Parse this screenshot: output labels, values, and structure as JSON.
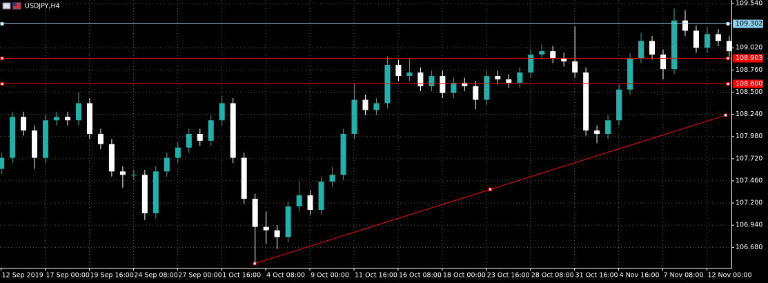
{
  "chart_data": {
    "type": "candlestick",
    "title": "USDJPY,H4",
    "bull_color": "#20b2aa",
    "bear_color": "#ffffff",
    "grid": true,
    "xlim": [
      -0.1,
      66.1
    ],
    "ylim": [
      106.44,
      109.58
    ],
    "xticks": [
      {
        "value": 0,
        "label": "12 Sep 2019"
      },
      {
        "value": 4,
        "label": "17 Sep 00:00"
      },
      {
        "value": 8,
        "label": "19 Sep 16:00"
      },
      {
        "value": 12,
        "label": "24 Sep 08:00"
      },
      {
        "value": 16,
        "label": "27 Sep 00:00"
      },
      {
        "value": 20,
        "label": "1 Oct 16:00"
      },
      {
        "value": 24,
        "label": "4 Oct 08:00"
      },
      {
        "value": 28,
        "label": "9 Oct 00:00"
      },
      {
        "value": 32,
        "label": "11 Oct 16:00"
      },
      {
        "value": 36,
        "label": "16 Oct 08:00"
      },
      {
        "value": 40,
        "label": "18 Oct 00:00"
      },
      {
        "value": 44,
        "label": "23 Oct 16:00"
      },
      {
        "value": 48,
        "label": "28 Oct 08:00"
      },
      {
        "value": 52,
        "label": "31 Oct 16:00"
      },
      {
        "value": 56,
        "label": "4 Nov 16:00"
      },
      {
        "value": 60,
        "label": "7 Nov 08:00"
      },
      {
        "value": 64,
        "label": "12 Nov 00:00"
      }
    ],
    "yticks": [
      {
        "value": 109.54,
        "label": "109.540"
      },
      {
        "value": 109.02,
        "label": "109.020"
      },
      {
        "value": 108.76,
        "label": "108.760"
      },
      {
        "value": 108.5,
        "label": "108.500"
      },
      {
        "value": 108.24,
        "label": "108.240"
      },
      {
        "value": 107.98,
        "label": "107.980"
      },
      {
        "value": 107.72,
        "label": "107.720"
      },
      {
        "value": 107.46,
        "label": "107.460"
      },
      {
        "value": 107.2,
        "label": "107.200"
      },
      {
        "value": 106.94,
        "label": "106.940"
      },
      {
        "value": 106.68,
        "label": "106.680"
      }
    ],
    "open": [
      107.6,
      107.73,
      108.21,
      108.05,
      107.73,
      108.17,
      108.21,
      108.17,
      108.37,
      108.01,
      107.89,
      107.57,
      107.53,
      107.53,
      107.08,
      107.57,
      107.73,
      107.85,
      108.01,
      107.93,
      108.17,
      108.37,
      107.73,
      107.25,
      106.92,
      106.88,
      106.8,
      107.16,
      107.29,
      107.12,
      107.45,
      107.53,
      108.01,
      108.41,
      108.29,
      108.37,
      108.82,
      108.69,
      108.73,
      108.57,
      108.69,
      108.49,
      108.61,
      108.57,
      108.41,
      108.69,
      108.65,
      108.61,
      108.73,
      108.94,
      108.98,
      108.9,
      108.86,
      108.73,
      108.05,
      108.01,
      108.17,
      108.53,
      108.9,
      109.1,
      108.94,
      108.77,
      109.34,
      109.22,
      109.02,
      109.18,
      109.1
    ],
    "high": [
      107.79,
      108.27,
      108.27,
      108.11,
      108.23,
      108.27,
      108.27,
      108.5,
      108.43,
      108.07,
      107.95,
      107.63,
      107.59,
      107.59,
      107.63,
      107.79,
      107.91,
      108.07,
      108.07,
      108.23,
      108.46,
      108.43,
      107.79,
      107.31,
      107.1,
      106.94,
      107.22,
      107.45,
      107.35,
      107.51,
      107.62,
      108.07,
      108.6,
      108.47,
      108.43,
      108.92,
      108.88,
      108.9,
      108.79,
      108.75,
      108.75,
      108.67,
      108.67,
      108.63,
      108.75,
      108.75,
      108.71,
      108.79,
      109.0,
      109.06,
      109.04,
      108.96,
      109.27,
      108.79,
      108.11,
      108.23,
      108.59,
      108.96,
      109.2,
      109.16,
      109.0,
      109.48,
      109.46,
      109.28,
      109.26,
      109.24,
      109.16
    ],
    "low": [
      107.54,
      107.67,
      107.99,
      107.6,
      107.67,
      108.11,
      108.11,
      108.11,
      107.95,
      107.83,
      107.51,
      107.38,
      107.47,
      107.0,
      107.02,
      107.51,
      107.67,
      107.79,
      107.87,
      107.87,
      108.11,
      107.67,
      107.19,
      106.5,
      106.72,
      106.66,
      106.74,
      107.1,
      107.06,
      107.06,
      107.39,
      107.47,
      107.95,
      108.23,
      108.23,
      108.31,
      108.63,
      108.63,
      108.51,
      108.51,
      108.43,
      108.43,
      108.51,
      108.3,
      108.35,
      108.59,
      108.55,
      108.55,
      108.67,
      108.88,
      108.84,
      108.8,
      108.67,
      107.99,
      107.9,
      107.95,
      108.11,
      108.47,
      108.84,
      108.88,
      108.65,
      108.71,
      109.16,
      108.96,
      108.96,
      109.04,
      108.92
    ],
    "close": [
      107.73,
      108.21,
      108.05,
      107.73,
      108.17,
      108.21,
      108.17,
      108.37,
      108.01,
      107.89,
      107.57,
      107.53,
      107.53,
      107.08,
      107.57,
      107.73,
      107.85,
      108.01,
      107.93,
      108.17,
      108.37,
      107.73,
      107.25,
      106.92,
      106.88,
      106.8,
      107.16,
      107.29,
      107.12,
      107.45,
      107.53,
      108.01,
      108.41,
      108.29,
      108.37,
      108.82,
      108.69,
      108.73,
      108.57,
      108.69,
      108.49,
      108.61,
      108.57,
      108.41,
      108.69,
      108.65,
      108.61,
      108.73,
      108.94,
      108.98,
      108.9,
      108.86,
      108.73,
      108.05,
      108.01,
      108.17,
      108.53,
      108.9,
      109.1,
      108.94,
      108.77,
      109.34,
      109.22,
      109.02,
      109.18,
      109.1,
      108.98
    ],
    "hlines": [
      {
        "value": 109.302,
        "label": "109.302",
        "color": "#87ceeb"
      },
      {
        "value": 108.903,
        "label": "108.903",
        "color": "#ff0000"
      },
      {
        "value": 108.6,
        "label": "108.600",
        "color": "#ff0000"
      }
    ],
    "trendline": {
      "x": [
        23,
        65.7
      ],
      "y": [
        106.49,
        108.23
      ],
      "color": "#ff0000"
    }
  }
}
